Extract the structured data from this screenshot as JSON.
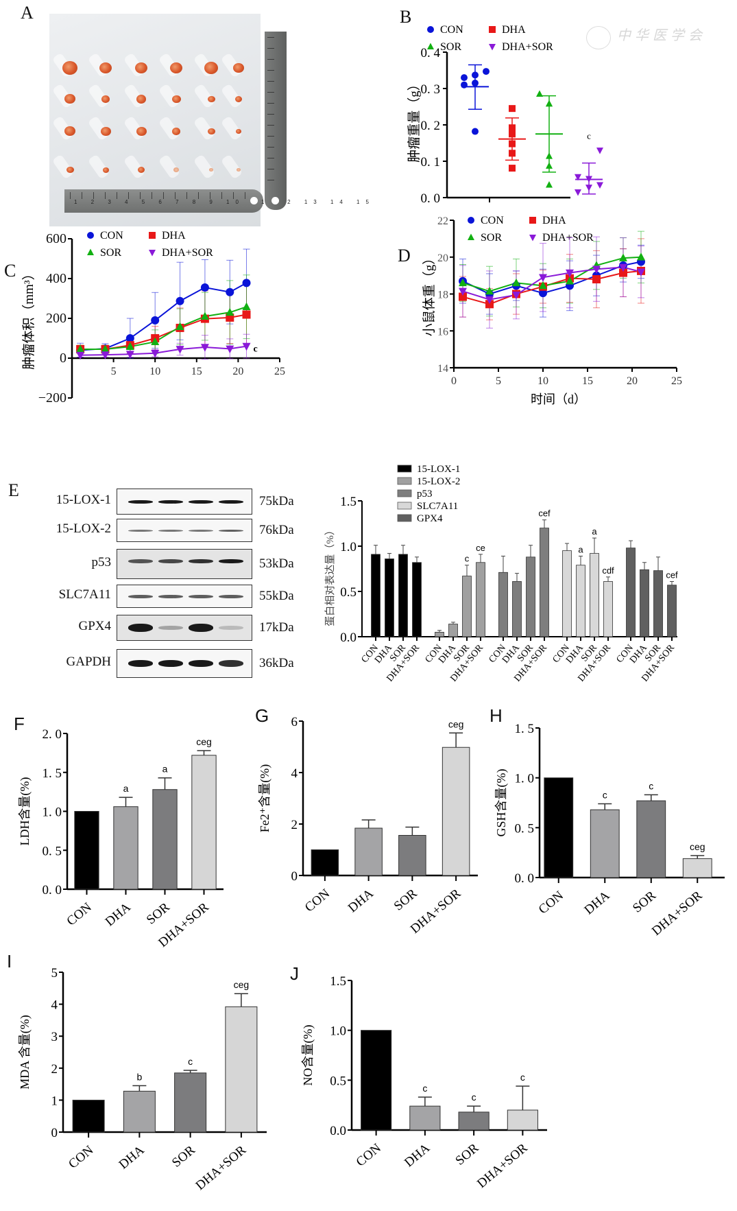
{
  "figure": {
    "panel_labels": [
      "A",
      "B",
      "C",
      "D",
      "E",
      "F",
      "G",
      "H",
      "I",
      "J"
    ],
    "groups": [
      "CON",
      "DHA",
      "SOR",
      "DHA+SOR"
    ],
    "group_colors": {
      "CON": "#0a14d8",
      "DHA": "#e81818",
      "SOR": "#12b012",
      "DHA+SOR": "#8a1ad8"
    },
    "watermark": "中华医学会"
  },
  "panelA": {
    "description": "Photo of excised xenograft tumors (4 rows × 6) with steel rulers",
    "rows": 4,
    "cols": 6,
    "ruler_numbers": "1 2 3 4 5 6 7 8 9 10 11 12 13 14 15"
  },
  "chart_data": [
    {
      "id": "B",
      "type": "scatter",
      "title": "",
      "ylabel": "肿瘤重量（g）",
      "xlabel": "",
      "ylim": [
        0,
        0.4
      ],
      "yticks": [
        "0.0",
        "0.1",
        "0.2",
        "0.3",
        "0.4"
      ],
      "legend": [
        "CON",
        "DHA",
        "SOR",
        "DHA+SOR"
      ],
      "legend_position": "top",
      "series": [
        {
          "name": "CON",
          "marker": "circle",
          "points": [
            0.33,
            0.31,
            0.337,
            0.315,
            0.347,
            0.182
          ],
          "mean": 0.305,
          "sd_low": 0.243,
          "sd_high": 0.365
        },
        {
          "name": "DHA",
          "marker": "square",
          "points": [
            0.245,
            0.192,
            0.175,
            0.148,
            0.122,
            0.081
          ],
          "mean": 0.161,
          "sd_low": 0.103,
          "sd_high": 0.219
        },
        {
          "name": "SOR",
          "marker": "triangle-up",
          "points": [
            0.285,
            0.258,
            0.258,
            0.114,
            0.087,
            0.035
          ],
          "mean": 0.175,
          "sd_low": 0.07,
          "sd_high": 0.28
        },
        {
          "name": "DHA+SOR",
          "marker": "triangle-down",
          "points": [
            0.13,
            0.057,
            0.052,
            0.035,
            0.028,
            0.015
          ],
          "mean": 0.05,
          "sd_low": 0.01,
          "sd_high": 0.095,
          "annotation": "c"
        }
      ]
    },
    {
      "id": "C",
      "type": "line",
      "title": "",
      "ylabel": "肿瘤体积（mm³）",
      "xlabel": "",
      "xlim": [
        0,
        25
      ],
      "ylim": [
        -200,
        600
      ],
      "xticks": [
        "5",
        "10",
        "15",
        "20",
        "25"
      ],
      "yticks": [
        "-200",
        "0",
        "200",
        "400",
        "600"
      ],
      "legend": [
        "CON",
        "DHA",
        "SOR",
        "DHA+SOR"
      ],
      "legend_position": "top",
      "x": [
        1,
        4,
        7,
        10,
        13,
        16,
        19,
        21
      ],
      "series": [
        {
          "name": "CON",
          "marker": "circle",
          "values": [
            40,
            48,
            100,
            190,
            287,
            355,
            332,
            378
          ],
          "err": [
            35,
            25,
            100,
            140,
            195,
            140,
            160,
            170
          ]
        },
        {
          "name": "DHA",
          "marker": "square",
          "values": [
            45,
            45,
            65,
            100,
            152,
            198,
            204,
            219
          ],
          "err": [
            20,
            20,
            40,
            60,
            100,
            140,
            130,
            150
          ]
        },
        {
          "name": "SOR",
          "marker": "triangle-up",
          "values": [
            45,
            45,
            58,
            82,
            158,
            210,
            230,
            258
          ],
          "err": [
            20,
            20,
            35,
            60,
            90,
            120,
            160,
            160
          ]
        },
        {
          "name": "DHA+SOR",
          "marker": "triangle-down",
          "values": [
            15,
            17,
            20,
            25,
            45,
            55,
            47,
            60
          ],
          "err": [
            10,
            12,
            15,
            18,
            30,
            60,
            50,
            60
          ],
          "annotation": "c"
        }
      ]
    },
    {
      "id": "D",
      "type": "line",
      "title": "",
      "ylabel": "小鼠体重（g）",
      "xlabel": "时间（d）",
      "xlim": [
        0,
        25
      ],
      "ylim": [
        14,
        22
      ],
      "xticks": [
        "0",
        "5",
        "10",
        "15",
        "20",
        "25"
      ],
      "yticks": [
        "14",
        "16",
        "18",
        "20",
        "22"
      ],
      "legend": [
        "CON",
        "DHA",
        "SOR",
        "DHA+SOR"
      ],
      "legend_position": "top",
      "x": [
        1,
        4,
        7,
        10,
        13,
        16,
        19,
        21
      ],
      "series": [
        {
          "name": "CON",
          "marker": "circle",
          "values": [
            18.7,
            18.0,
            18.45,
            18.05,
            18.45,
            19.0,
            19.55,
            19.75
          ],
          "err": [
            1.2,
            1.1,
            0.8,
            1.3,
            1.35,
            1.1,
            0.9,
            0.9
          ]
        },
        {
          "name": "DHA",
          "marker": "square",
          "values": [
            17.85,
            17.45,
            18.0,
            18.4,
            18.85,
            18.8,
            19.15,
            19.25
          ],
          "err": [
            1.1,
            0.85,
            1.1,
            0.9,
            1.3,
            1.55,
            1.3,
            1.75
          ]
        },
        {
          "name": "SOR",
          "marker": "triangle-up",
          "values": [
            18.6,
            18.15,
            18.6,
            18.45,
            18.7,
            19.55,
            19.95,
            20.0
          ],
          "err": [
            1.0,
            1.35,
            1.3,
            1.2,
            1.2,
            1.3,
            1.1,
            1.4
          ]
        },
        {
          "name": "DHA+SOR",
          "marker": "triangle-down",
          "values": [
            18.15,
            17.7,
            17.95,
            18.9,
            19.15,
            19.35,
            19.45,
            19.2
          ],
          "err": [
            1.4,
            1.55,
            1.3,
            1.85,
            1.9,
            1.75,
            1.6,
            1.4
          ]
        }
      ]
    },
    {
      "id": "E",
      "type": "bar",
      "title": "",
      "ylabel": "蛋白相对表达量（%）",
      "xlabel": "",
      "ylim": [
        0,
        1.5
      ],
      "yticks": [
        "0.0",
        "0.5",
        "1.0",
        "1.5"
      ],
      "categories": [
        "CON",
        "DHA",
        "SOR",
        "DHA+SOR"
      ],
      "legend_position": "top-left",
      "series": [
        {
          "name": "15-LOX-1",
          "color": "#000000",
          "values": [
            0.91,
            0.86,
            0.91,
            0.82
          ],
          "err": [
            0.1,
            0.06,
            0.1,
            0.06
          ],
          "annotations": [
            "",
            "",
            "",
            ""
          ]
        },
        {
          "name": "15-LOX-2",
          "color": "#a0a0a0",
          "values": [
            0.05,
            0.14,
            0.67,
            0.82
          ],
          "err": [
            0.02,
            0.02,
            0.12,
            0.09
          ],
          "annotations": [
            "",
            "",
            "c",
            "ce"
          ]
        },
        {
          "name": "p53",
          "color": "#7e7e7e",
          "values": [
            0.71,
            0.61,
            0.88,
            1.2
          ],
          "err": [
            0.18,
            0.09,
            0.13,
            0.09
          ],
          "annotations": [
            "",
            "",
            "",
            "cef"
          ]
        },
        {
          "name": "SLC7A11",
          "color": "#d8d8d8",
          "values": [
            0.95,
            0.79,
            0.92,
            0.61
          ],
          "err": [
            0.08,
            0.1,
            0.17,
            0.05
          ],
          "annotations": [
            "",
            "a",
            "a",
            "cdf"
          ]
        },
        {
          "name": "GPX4",
          "color": "#606060",
          "values": [
            0.98,
            0.74,
            0.73,
            0.57
          ],
          "err": [
            0.08,
            0.08,
            0.15,
            0.04
          ],
          "annotations": [
            "",
            "",
            "",
            "cef"
          ]
        }
      ],
      "western_blot": [
        {
          "protein": "15-LOX-1",
          "kda": "75kDa"
        },
        {
          "protein": "15-LOX-2",
          "kda": "76kDa"
        },
        {
          "protein": "p53",
          "kda": "53kDa"
        },
        {
          "protein": "SLC7A11",
          "kda": "55kDa"
        },
        {
          "protein": "GPX4",
          "kda": "17kDa"
        },
        {
          "protein": "GAPDH",
          "kda": "36kDa"
        }
      ]
    },
    {
      "id": "F",
      "type": "bar",
      "title": "",
      "ylabel": "LDH含量(%)",
      "xlabel": "",
      "ylim": [
        0,
        2.0
      ],
      "yticks": [
        "0.0",
        "0.5",
        "1.0",
        "1.5",
        "2.0"
      ],
      "categories": [
        "CON",
        "DHA",
        "SOR",
        "DHA+SOR"
      ],
      "values": [
        1.0,
        1.06,
        1.28,
        1.72
      ],
      "err": [
        0,
        0.12,
        0.15,
        0.06
      ],
      "annotations": [
        "",
        "a",
        "a",
        "ceg"
      ],
      "colors": [
        "#000000",
        "#a4a4a6",
        "#7c7c7e",
        "#d6d6d6"
      ]
    },
    {
      "id": "G",
      "type": "bar",
      "title": "",
      "ylabel": "Fe2⁺含量(%)",
      "xlabel": "",
      "ylim": [
        0,
        6
      ],
      "yticks": [
        "0",
        "2",
        "4",
        "6"
      ],
      "categories": [
        "CON",
        "DHA",
        "SOR",
        "DHA+SOR"
      ],
      "values": [
        1.0,
        1.84,
        1.56,
        4.98
      ],
      "err": [
        0,
        0.32,
        0.32,
        0.56
      ],
      "annotations": [
        "",
        "",
        "",
        "ceg"
      ],
      "colors": [
        "#000000",
        "#a4a4a6",
        "#7c7c7e",
        "#d6d6d6"
      ]
    },
    {
      "id": "H",
      "type": "bar",
      "title": "",
      "ylabel": "GSH含量(%)",
      "xlabel": "",
      "ylim": [
        0,
        1.5
      ],
      "yticks": [
        "0.0",
        "0.5",
        "1.0",
        "1.5"
      ],
      "categories": [
        "CON",
        "DHA",
        "SOR",
        "DHA+SOR"
      ],
      "values": [
        1.0,
        0.68,
        0.77,
        0.19
      ],
      "err": [
        0,
        0.06,
        0.06,
        0.03
      ],
      "annotations": [
        "",
        "c",
        "c",
        "ceg"
      ],
      "colors": [
        "#000000",
        "#a4a4a6",
        "#7c7c7e",
        "#d6d6d6"
      ]
    },
    {
      "id": "I",
      "type": "bar",
      "title": "",
      "ylabel": "MDA 含量(%)",
      "xlabel": "",
      "ylim": [
        0,
        5
      ],
      "yticks": [
        "0",
        "1",
        "2",
        "3",
        "4",
        "5"
      ],
      "categories": [
        "CON",
        "DHA",
        "SOR",
        "DHA+SOR"
      ],
      "values": [
        1.0,
        1.28,
        1.85,
        3.92
      ],
      "err": [
        0,
        0.17,
        0.08,
        0.41
      ],
      "annotations": [
        "",
        "b",
        "c",
        "ceg"
      ],
      "colors": [
        "#000000",
        "#a4a4a6",
        "#7c7c7e",
        "#d6d6d6"
      ]
    },
    {
      "id": "J",
      "type": "bar",
      "title": "",
      "ylabel": "NO含量(%)",
      "xlabel": "",
      "ylim": [
        0,
        1.5
      ],
      "yticks": [
        "0.0",
        "0.5",
        "1.0",
        "1.5"
      ],
      "categories": [
        "CON",
        "DHA",
        "SOR",
        "DHA+SOR"
      ],
      "values": [
        1.0,
        0.24,
        0.18,
        0.2
      ],
      "err": [
        0,
        0.09,
        0.06,
        0.24
      ],
      "annotations": [
        "",
        "c",
        "c",
        "c"
      ],
      "colors": [
        "#000000",
        "#a4a4a6",
        "#7c7c7e",
        "#d6d6d6"
      ]
    }
  ]
}
